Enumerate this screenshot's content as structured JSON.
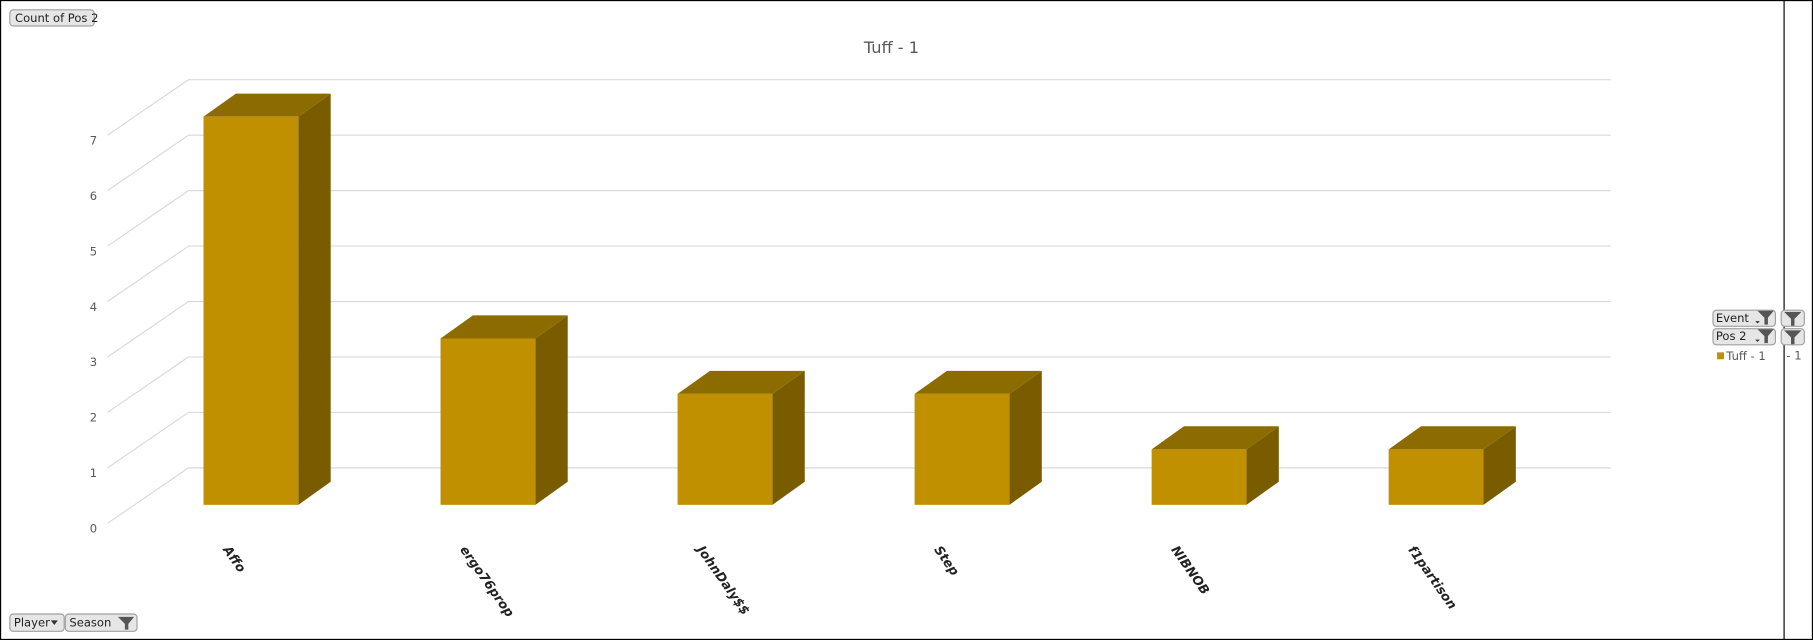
{
  "chart_data": {
    "type": "bar3d",
    "title": "Tuff - 1",
    "categories": [
      "Affo",
      "ergo76prop",
      "JohnDaly$$",
      "Step",
      "NIBNOB",
      "f1partison"
    ],
    "series": [
      {
        "name": "Tuff - 1",
        "color": "#c09000",
        "values": [
          7,
          3,
          2,
          2,
          1,
          1
        ]
      }
    ],
    "ylim": [
      0,
      7
    ],
    "yticks": [
      0,
      1,
      2,
      3,
      4,
      5,
      6,
      7
    ],
    "grid": true
  },
  "field_buttons": {
    "value": "Count of Pos 2",
    "filters": [
      "Event",
      "Pos 2"
    ],
    "axis": [
      "Player",
      "Season"
    ]
  },
  "legend_overflow": "- 1"
}
